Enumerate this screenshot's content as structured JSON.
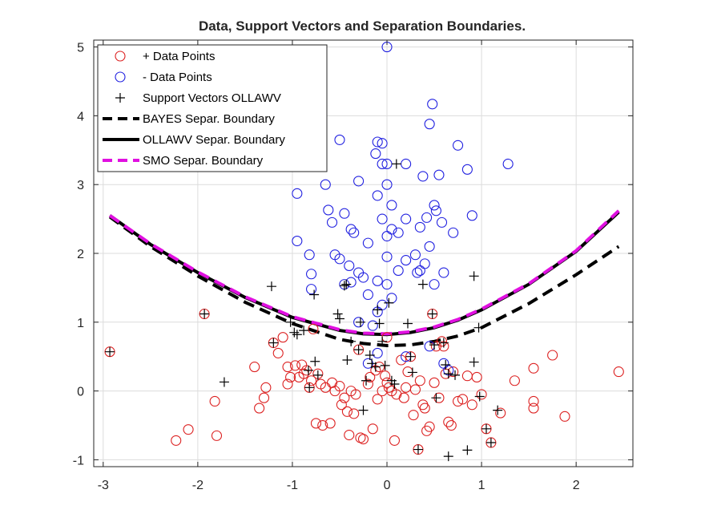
{
  "chart_data": {
    "type": "scatter",
    "title": "Data, Support Vectors and Separation Boundaries.",
    "xlabel": "",
    "ylabel": "",
    "xlim": [
      -3.1,
      2.6
    ],
    "ylim": [
      -1.1,
      5.1
    ],
    "xticks": [
      -3,
      -2,
      -1,
      0,
      1,
      2
    ],
    "yticks": [
      -1,
      0,
      1,
      2,
      3,
      4,
      5
    ],
    "grid": true,
    "legend_position": "top-left",
    "legend": [
      "+ Data Points",
      "-  Data Points",
      "Support Vectors OLLAWV",
      "BAYES Separ. Boundary",
      "OLLAWV Separ. Boundary",
      "SMO Separ. Boundary"
    ],
    "colors": {
      "positive": "#dc2020",
      "negative": "#2020e0",
      "support": "#000000",
      "bayes": "#000000",
      "ollawv": "#000000",
      "smo": "#e010e0",
      "grid": "#dcdcdc",
      "axis": "#262626"
    },
    "positive_points": [
      [
        -2.93,
        0.57
      ],
      [
        -1.93,
        1.12
      ],
      [
        -2.23,
        -0.72
      ],
      [
        -2.1,
        -0.56
      ],
      [
        -1.8,
        -0.65
      ],
      [
        -1.82,
        -0.15
      ],
      [
        -1.4,
        0.35
      ],
      [
        -1.35,
        -0.25
      ],
      [
        -1.3,
        -0.1
      ],
      [
        -1.28,
        0.05
      ],
      [
        -1.2,
        0.7
      ],
      [
        -1.15,
        0.55
      ],
      [
        -1.1,
        0.78
      ],
      [
        -1.05,
        0.35
      ],
      [
        -1.05,
        0.1
      ],
      [
        -1.02,
        0.2
      ],
      [
        -0.97,
        0.37
      ],
      [
        -0.93,
        0.2
      ],
      [
        -0.9,
        0.38
      ],
      [
        -0.88,
        0.25
      ],
      [
        -0.85,
        0.3
      ],
      [
        -0.82,
        0.05
      ],
      [
        -0.8,
        0.15
      ],
      [
        -0.78,
        0.9
      ],
      [
        -0.75,
        -0.47
      ],
      [
        -0.73,
        0.25
      ],
      [
        -0.7,
        0.1
      ],
      [
        -0.68,
        -0.5
      ],
      [
        -0.65,
        0.05
      ],
      [
        -0.6,
        -0.47
      ],
      [
        -0.58,
        0.12
      ],
      [
        -0.55,
        0.0
      ],
      [
        -0.5,
        0.07
      ],
      [
        -0.48,
        -0.2
      ],
      [
        -0.45,
        -0.1
      ],
      [
        -0.42,
        -0.3
      ],
      [
        -0.4,
        -0.64
      ],
      [
        -0.38,
        0.0
      ],
      [
        -0.35,
        -0.33
      ],
      [
        -0.33,
        -0.05
      ],
      [
        -0.3,
        0.6
      ],
      [
        -0.28,
        -0.68
      ],
      [
        -0.25,
        -0.7
      ],
      [
        -0.2,
        0.1
      ],
      [
        -0.18,
        0.2
      ],
      [
        -0.15,
        -0.55
      ],
      [
        -0.12,
        0.3
      ],
      [
        -0.1,
        -0.12
      ],
      [
        -0.08,
        0.35
      ],
      [
        -0.05,
        0.0
      ],
      [
        -0.02,
        0.22
      ],
      [
        0.0,
        0.12
      ],
      [
        0.02,
        0.05
      ],
      [
        0.05,
        0.0
      ],
      [
        0.08,
        -0.72
      ],
      [
        0.1,
        -0.05
      ],
      [
        0.15,
        0.45
      ],
      [
        0.18,
        -0.1
      ],
      [
        0.2,
        0.05
      ],
      [
        0.22,
        0.28
      ],
      [
        0.25,
        0.5
      ],
      [
        0.28,
        -0.35
      ],
      [
        0.3,
        0.02
      ],
      [
        0.33,
        -0.85
      ],
      [
        0.35,
        0.15
      ],
      [
        0.38,
        -0.2
      ],
      [
        0.4,
        -0.25
      ],
      [
        0.42,
        -0.58
      ],
      [
        0.45,
        -0.52
      ],
      [
        0.48,
        1.12
      ],
      [
        0.5,
        0.12
      ],
      [
        0.52,
        0.65
      ],
      [
        0.55,
        -0.1
      ],
      [
        0.58,
        0.72
      ],
      [
        0.6,
        0.65
      ],
      [
        0.62,
        0.25
      ],
      [
        0.65,
        -0.45
      ],
      [
        0.68,
        -0.5
      ],
      [
        0.7,
        0.28
      ],
      [
        0.75,
        -0.15
      ],
      [
        0.8,
        -0.12
      ],
      [
        0.85,
        0.22
      ],
      [
        0.9,
        -0.2
      ],
      [
        0.95,
        0.2
      ],
      [
        1.0,
        -0.05
      ],
      [
        1.05,
        -0.55
      ],
      [
        1.1,
        -0.75
      ],
      [
        1.2,
        -0.32
      ],
      [
        1.35,
        0.15
      ],
      [
        1.55,
        0.33
      ],
      [
        1.55,
        -0.15
      ],
      [
        1.55,
        -0.25
      ],
      [
        1.75,
        0.52
      ],
      [
        1.88,
        -0.37
      ],
      [
        2.45,
        0.28
      ],
      [
        0.0,
        0.78
      ]
    ],
    "negative_points": [
      [
        0.0,
        5.0
      ],
      [
        0.48,
        4.17
      ],
      [
        0.45,
        3.88
      ],
      [
        0.75,
        3.57
      ],
      [
        1.28,
        3.3
      ],
      [
        0.85,
        3.22
      ],
      [
        0.55,
        3.14
      ],
      [
        0.38,
        3.12
      ],
      [
        -0.1,
        3.62
      ],
      [
        -0.05,
        3.6
      ],
      [
        -0.12,
        3.45
      ],
      [
        -0.5,
        3.65
      ],
      [
        -0.05,
        3.3
      ],
      [
        0.0,
        3.3
      ],
      [
        0.2,
        3.3
      ],
      [
        -0.3,
        3.05
      ],
      [
        0.0,
        3.0
      ],
      [
        -0.65,
        3.0
      ],
      [
        -0.95,
        2.87
      ],
      [
        -0.1,
        2.84
      ],
      [
        0.05,
        2.7
      ],
      [
        0.5,
        2.7
      ],
      [
        0.52,
        2.62
      ],
      [
        0.42,
        2.52
      ],
      [
        -0.62,
        2.63
      ],
      [
        -0.45,
        2.58
      ],
      [
        -0.05,
        2.5
      ],
      [
        0.2,
        2.5
      ],
      [
        0.9,
        2.55
      ],
      [
        0.58,
        2.45
      ],
      [
        -0.58,
        2.45
      ],
      [
        0.35,
        2.38
      ],
      [
        -0.38,
        2.35
      ],
      [
        -0.35,
        2.3
      ],
      [
        0.05,
        2.35
      ],
      [
        0.12,
        2.3
      ],
      [
        0.0,
        2.25
      ],
      [
        0.7,
        2.3
      ],
      [
        0.45,
        2.1
      ],
      [
        -0.95,
        2.18
      ],
      [
        -0.2,
        2.15
      ],
      [
        -0.82,
        1.98
      ],
      [
        -0.55,
        1.98
      ],
      [
        -0.5,
        1.92
      ],
      [
        0.0,
        1.95
      ],
      [
        0.2,
        1.9
      ],
      [
        0.3,
        1.98
      ],
      [
        0.4,
        1.85
      ],
      [
        -0.4,
        1.82
      ],
      [
        -0.3,
        1.72
      ],
      [
        -0.8,
        1.7
      ],
      [
        -0.25,
        1.65
      ],
      [
        -0.38,
        1.58
      ],
      [
        -0.45,
        1.55
      ],
      [
        -0.1,
        1.6
      ],
      [
        0.0,
        1.55
      ],
      [
        0.5,
        1.55
      ],
      [
        -0.8,
        1.48
      ],
      [
        -0.2,
        1.4
      ],
      [
        0.05,
        1.35
      ],
      [
        0.12,
        1.75
      ],
      [
        0.32,
        1.72
      ],
      [
        0.35,
        1.75
      ],
      [
        0.6,
        1.72
      ],
      [
        -0.1,
        1.15
      ],
      [
        -0.05,
        1.25
      ],
      [
        -0.15,
        0.95
      ],
      [
        -0.2,
        0.4
      ],
      [
        -0.1,
        0.55
      ],
      [
        0.45,
        0.65
      ],
      [
        0.6,
        0.4
      ],
      [
        0.65,
        0.3
      ],
      [
        0.2,
        0.5
      ],
      [
        -0.3,
        1.0
      ]
    ],
    "support_vectors": [
      [
        -2.93,
        0.57
      ],
      [
        -1.93,
        1.12
      ],
      [
        -1.22,
        1.52
      ],
      [
        -1.2,
        0.7
      ],
      [
        -1.02,
        1.0
      ],
      [
        -0.98,
        0.85
      ],
      [
        -0.95,
        0.82
      ],
      [
        -0.88,
        0.88
      ],
      [
        -0.83,
        0.3
      ],
      [
        -0.82,
        0.05
      ],
      [
        -0.77,
        1.4
      ],
      [
        -0.76,
        0.43
      ],
      [
        -0.73,
        0.23
      ],
      [
        -0.52,
        1.12
      ],
      [
        -0.5,
        1.05
      ],
      [
        -0.45,
        1.53
      ],
      [
        -0.43,
        1.55
      ],
      [
        -0.42,
        0.45
      ],
      [
        -0.38,
        0.72
      ],
      [
        -0.3,
        0.6
      ],
      [
        -0.28,
        1.0
      ],
      [
        -0.25,
        -0.28
      ],
      [
        -0.22,
        0.15
      ],
      [
        -0.18,
        0.52
      ],
      [
        -0.16,
        0.4
      ],
      [
        -0.12,
        0.35
      ],
      [
        -0.1,
        1.18
      ],
      [
        -0.08,
        0.98
      ],
      [
        -0.05,
        0.72
      ],
      [
        -0.02,
        0.37
      ],
      [
        0.02,
        1.28
      ],
      [
        0.05,
        0.15
      ],
      [
        0.08,
        0.1
      ],
      [
        0.1,
        3.3
      ],
      [
        0.22,
        0.98
      ],
      [
        0.25,
        0.5
      ],
      [
        0.27,
        0.27
      ],
      [
        0.33,
        -0.85
      ],
      [
        0.38,
        1.55
      ],
      [
        0.48,
        1.12
      ],
      [
        0.5,
        0.67
      ],
      [
        0.52,
        -0.1
      ],
      [
        0.6,
        0.7
      ],
      [
        0.62,
        0.38
      ],
      [
        0.65,
        0.25
      ],
      [
        0.65,
        -0.95
      ],
      [
        0.72,
        0.23
      ],
      [
        0.85,
        -0.86
      ],
      [
        0.92,
        0.42
      ],
      [
        0.92,
        1.67
      ],
      [
        0.97,
        0.92
      ],
      [
        0.98,
        -0.08
      ],
      [
        1.05,
        -0.55
      ],
      [
        1.1,
        -0.75
      ],
      [
        1.17,
        -0.28
      ],
      [
        -1.72,
        0.13
      ]
    ],
    "bayes_boundary": {
      "x": [
        -2.93,
        -2.5,
        -2.0,
        -1.5,
        -1.0,
        -0.5,
        -0.25,
        0.0,
        0.25,
        0.5,
        0.75,
        1.0,
        1.5,
        2.0,
        2.45
      ],
      "y": [
        2.53,
        2.1,
        1.67,
        1.29,
        0.98,
        0.75,
        0.69,
        0.66,
        0.67,
        0.72,
        0.8,
        0.92,
        1.27,
        1.69,
        2.1
      ]
    },
    "ollawv_boundary": {
      "x": [
        -2.93,
        -2.5,
        -2.0,
        -1.5,
        -1.0,
        -0.5,
        -0.25,
        0.0,
        0.25,
        0.5,
        0.75,
        1.0,
        1.5,
        2.0,
        2.45
      ],
      "y": [
        2.55,
        2.13,
        1.72,
        1.36,
        1.07,
        0.88,
        0.83,
        0.82,
        0.85,
        0.92,
        1.03,
        1.18,
        1.55,
        2.03,
        2.6
      ]
    },
    "smo_boundary": {
      "x": [
        -2.93,
        -2.5,
        -2.0,
        -1.5,
        -1.0,
        -0.5,
        -0.25,
        0.0,
        0.25,
        0.5,
        0.75,
        1.0,
        1.5,
        2.0,
        2.45
      ],
      "y": [
        2.55,
        2.14,
        1.73,
        1.37,
        1.08,
        0.89,
        0.84,
        0.83,
        0.86,
        0.93,
        1.04,
        1.19,
        1.56,
        2.04,
        2.62
      ]
    }
  }
}
